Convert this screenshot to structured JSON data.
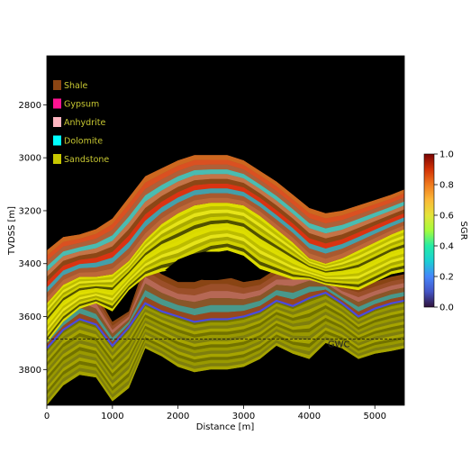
{
  "chart_data": {
    "type": "area",
    "xlabel": "Distance [m]",
    "ylabel": "TVDSS [m]",
    "xlim": [
      0,
      5450
    ],
    "ylim": [
      3935,
      2615
    ],
    "y_inverted": true,
    "xticks": [
      0,
      1000,
      2000,
      3000,
      4000,
      5000
    ],
    "yticks": [
      2800,
      3000,
      3200,
      3400,
      3600,
      3800
    ],
    "background": "#000000",
    "legend": {
      "placement": "upper-left",
      "items": [
        {
          "label": "Shale",
          "color": "#8B4513"
        },
        {
          "label": "Gypsum",
          "color": "#FF1493"
        },
        {
          "label": "Anhydrite",
          "color": "#FFB6C1"
        },
        {
          "label": "Dolomite",
          "color": "#00FFFF"
        },
        {
          "label": "Sandstone",
          "color": "#C8C800"
        }
      ]
    },
    "colorbar": {
      "label": "SGR",
      "min": 0.0,
      "max": 1.0,
      "ticks": [
        0.0,
        0.2,
        0.4,
        0.6,
        0.8,
        1.0
      ]
    },
    "contact": {
      "label": "GWC",
      "depth": 3685
    },
    "horizons": {
      "x": [
        0,
        250,
        500,
        750,
        1000,
        1250,
        1500,
        1750,
        2000,
        2250,
        2500,
        2750,
        3000,
        3250,
        3500,
        3750,
        4000,
        4250,
        4500,
        4750,
        5000,
        5250,
        5450
      ],
      "top": [
        3350,
        3300,
        3290,
        3270,
        3230,
        3150,
        3070,
        3040,
        3010,
        2990,
        2990,
        2990,
        3010,
        3050,
        3090,
        3140,
        3190,
        3210,
        3200,
        3180,
        3160,
        3140,
        3120
      ],
      "sandstone_top": [
        3550,
        3480,
        3450,
        3450,
        3440,
        3390,
        3310,
        3250,
        3210,
        3180,
        3170,
        3170,
        3180,
        3220,
        3270,
        3320,
        3380,
        3400,
        3380,
        3350,
        3320,
        3290,
        3270
      ],
      "upper_block_base": [
        3700,
        3620,
        3570,
        3550,
        3580,
        3500,
        3450,
        3430,
        3420,
        3390,
        3360,
        3350,
        3370,
        3420,
        3440,
        3460,
        3460,
        3480,
        3490,
        3500,
        3470,
        3440,
        3430
      ],
      "fault_block_top": [
        3620,
        3560,
        3480,
        3510,
        3620,
        3580,
        3400,
        3440,
        3470,
        3470,
        3450,
        3450,
        3470,
        3460,
        3420,
        3410,
        3400,
        3440,
        3480,
        3490,
        3470,
        3450,
        3440
      ],
      "sand2_top": [
        3720,
        3650,
        3610,
        3630,
        3710,
        3640,
        3550,
        3580,
        3600,
        3620,
        3610,
        3610,
        3600,
        3580,
        3540,
        3560,
        3530,
        3510,
        3550,
        3600,
        3570,
        3550,
        3540
      ],
      "base": [
        3935,
        3860,
        3820,
        3830,
        3920,
        3870,
        3720,
        3750,
        3790,
        3810,
        3800,
        3800,
        3790,
        3760,
        3710,
        3740,
        3760,
        3700,
        3720,
        3760,
        3740,
        3730,
        3720
      ],
      "gas_blob": {
        "x": [
          1800,
          2000,
          2200,
          2400,
          2600,
          2800,
          3000,
          3200
        ],
        "top": [
          3425,
          3385,
          3365,
          3355,
          3355,
          3362,
          3380,
          3425
        ],
        "bottom": [
          3425,
          3440,
          3455,
          3462,
          3462,
          3455,
          3445,
          3425
        ]
      }
    }
  }
}
